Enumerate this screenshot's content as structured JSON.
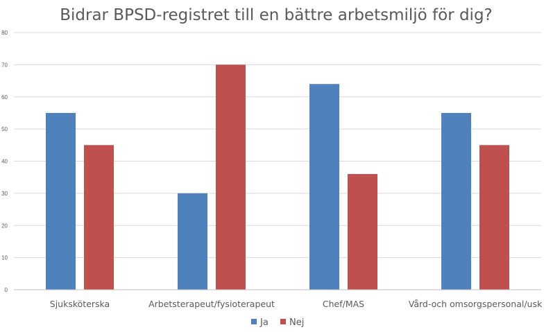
{
  "chart_data": {
    "type": "bar",
    "title": "Bidrar BPSD-registret till en bättre arbetsmiljö för dig?",
    "categories": [
      "Sjuksköterska",
      "Arbetsterapeut/fysioterapeut",
      "Chef/MAS",
      "Vård-och omsorgspersonal/usk"
    ],
    "series": [
      {
        "name": "Ja",
        "values": [
          55,
          30,
          64,
          55
        ],
        "color": "#4f81bd"
      },
      {
        "name": "Nej",
        "values": [
          45,
          70,
          36,
          45
        ],
        "color": "#c0504d"
      }
    ],
    "ylim": [
      0,
      80
    ],
    "yticks": [
      "0",
      "10",
      "20",
      "30",
      "40",
      "50",
      "60",
      "70",
      "80"
    ],
    "grid": true,
    "legend_position": "bottom"
  }
}
